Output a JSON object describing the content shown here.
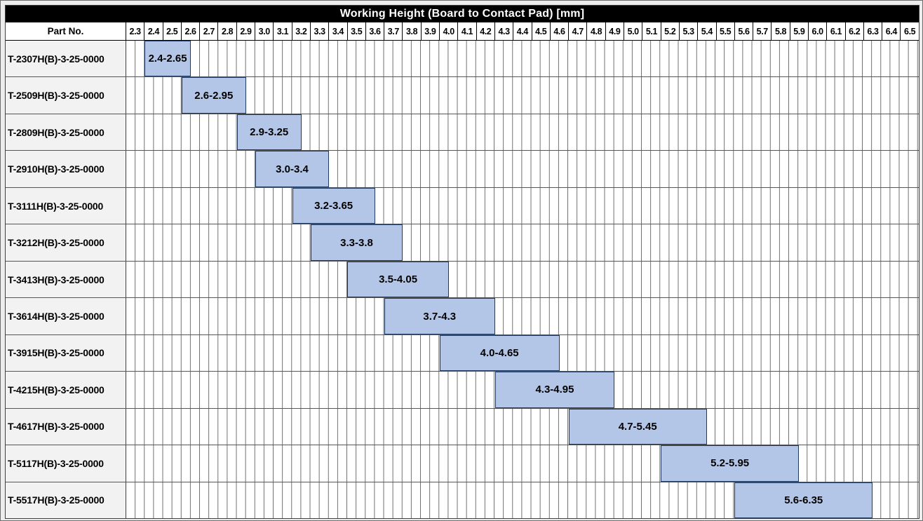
{
  "title": "Working Height (Board to Contact Pad) [mm]",
  "header": {
    "part_col_label": "Part No."
  },
  "colors": {
    "title_bg": "#000000",
    "title_fg": "#ffffff",
    "bar_fill": "#b4c6e7",
    "bar_border": "#1f3a60",
    "part_cell_bg": "#f2f2f2",
    "gridline": "#6e6e6e"
  },
  "chart_data": {
    "type": "bar",
    "subtype": "horizontal-range",
    "title": "Working Height (Board to Contact Pad) [mm]",
    "xlim": [
      2.3,
      6.6
    ],
    "x_major_step": 0.1,
    "x_minor_step": 0.05,
    "grid": true,
    "x_tick_labels": [
      "2.3",
      "2.4",
      "2.5",
      "2.6",
      "2.7",
      "2.8",
      "2.9",
      "3.0",
      "3.1",
      "3.2",
      "3.3",
      "3.4",
      "3.5",
      "3.6",
      "3.7",
      "3.8",
      "3.9",
      "4.0",
      "4.1",
      "4.2",
      "4.3",
      "4.4",
      "4.5",
      "4.6",
      "4.7",
      "4.8",
      "4.9",
      "5.0",
      "5.1",
      "5.2",
      "5.3",
      "5.4",
      "5.5",
      "5.6",
      "5.7",
      "5.8",
      "5.9",
      "6.0",
      "6.1",
      "6.2",
      "6.3",
      "6.4",
      "6.5"
    ],
    "rows": [
      {
        "part_no": "T-2307H(B)-3-25-0000",
        "start": 2.4,
        "end": 2.65,
        "label": "2.4-2.65"
      },
      {
        "part_no": "T-2509H(B)-3-25-0000",
        "start": 2.6,
        "end": 2.95,
        "label": "2.6-2.95"
      },
      {
        "part_no": "T-2809H(B)-3-25-0000",
        "start": 2.9,
        "end": 3.25,
        "label": "2.9-3.25"
      },
      {
        "part_no": "T-2910H(B)-3-25-0000",
        "start": 3.0,
        "end": 3.4,
        "label": "3.0-3.4"
      },
      {
        "part_no": "T-3111H(B)-3-25-0000",
        "start": 3.2,
        "end": 3.65,
        "label": "3.2-3.65"
      },
      {
        "part_no": "T-3212H(B)-3-25-0000",
        "start": 3.3,
        "end": 3.8,
        "label": "3.3-3.8"
      },
      {
        "part_no": "T-3413H(B)-3-25-0000",
        "start": 3.5,
        "end": 4.05,
        "label": "3.5-4.05"
      },
      {
        "part_no": "T-3614H(B)-3-25-0000",
        "start": 3.7,
        "end": 4.3,
        "label": "3.7-4.3"
      },
      {
        "part_no": "T-3915H(B)-3-25-0000",
        "start": 4.0,
        "end": 4.65,
        "label": "4.0-4.65"
      },
      {
        "part_no": "T-4215H(B)-3-25-0000",
        "start": 4.3,
        "end": 4.95,
        "label": "4.3-4.95"
      },
      {
        "part_no": "T-4617H(B)-3-25-0000",
        "start": 4.7,
        "end": 5.45,
        "label": "4.7-5.45"
      },
      {
        "part_no": "T-5117H(B)-3-25-0000",
        "start": 5.2,
        "end": 5.95,
        "label": "5.2-5.95"
      },
      {
        "part_no": "T-5517H(B)-3-25-0000",
        "start": 5.6,
        "end": 6.35,
        "label": "5.6-6.35"
      }
    ]
  }
}
